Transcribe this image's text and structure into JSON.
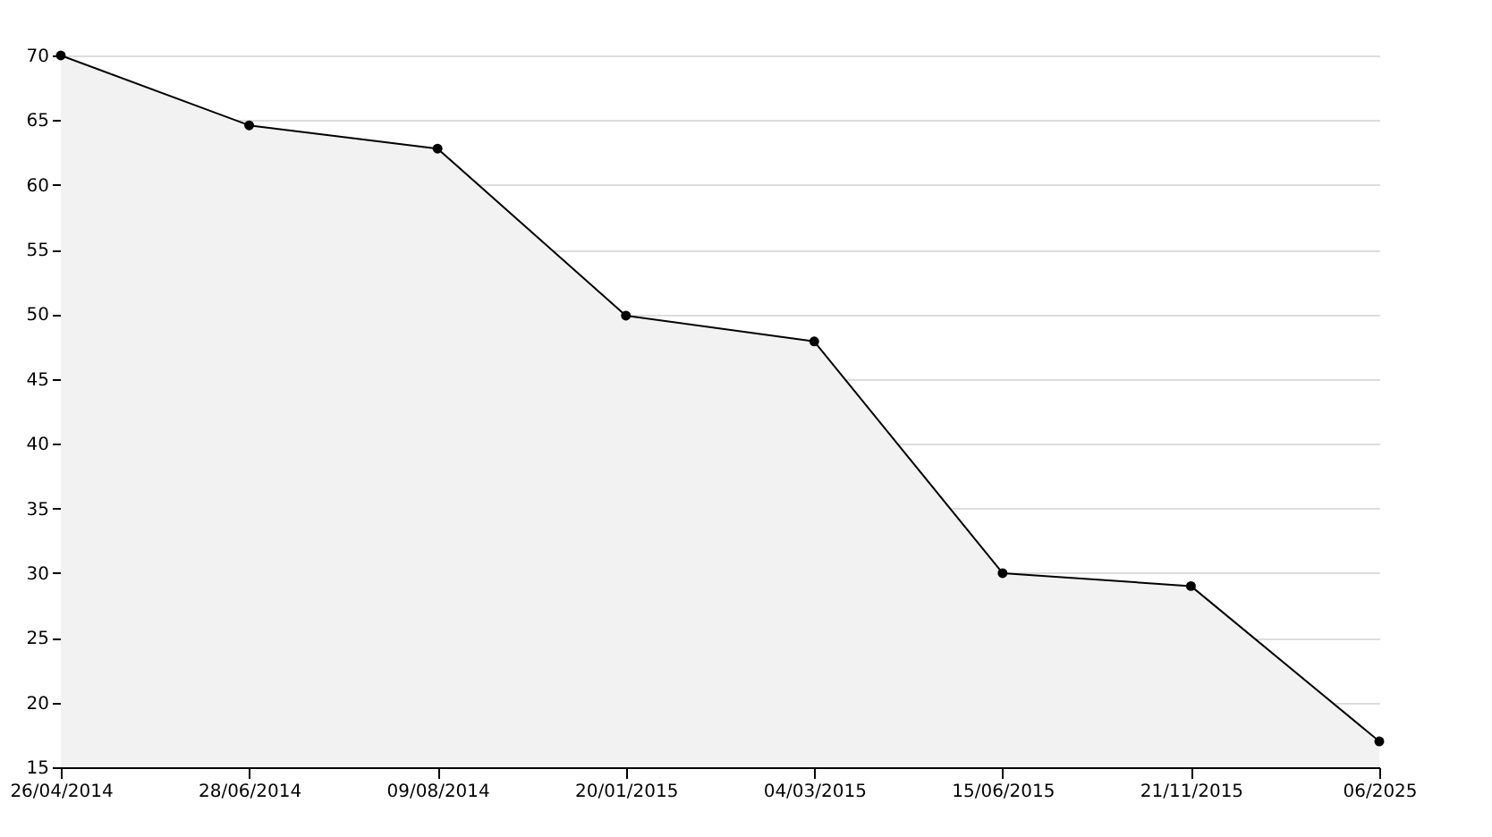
{
  "chart_data": {
    "type": "area",
    "categories": [
      "26/04/2014",
      "28/06/2014",
      "09/08/2014",
      "20/01/2015",
      "04/03/2015",
      "15/06/2015",
      "21/11/2015",
      "06/2025"
    ],
    "series": [
      {
        "color": "#000000",
        "values": [
          70,
          64.6,
          62.8,
          49.9,
          47.9,
          30.0,
          29.0,
          17.0
        ]
      }
    ],
    "ylim": [
      15,
      70
    ],
    "yticks": [
      15,
      20,
      25,
      30,
      35,
      40,
      45,
      50,
      55,
      60,
      65,
      70
    ],
    "grid": "y",
    "marker": "circle",
    "line_style": "solid"
  }
}
